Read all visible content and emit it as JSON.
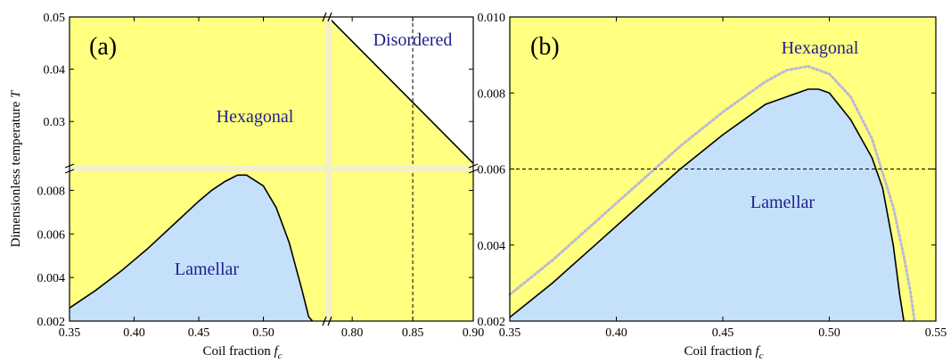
{
  "colors": {
    "hexagonal": "#ffff80",
    "lamellar": "#c5e0fa",
    "disordered": "#ffffff",
    "break_band": "#f3f1c8",
    "boundary": "#000000",
    "dotted": "#b9b9d6",
    "region_text": "#1f1f8c"
  },
  "chart_data": [
    {
      "type": "area",
      "panel_label": "(a)",
      "xlabel": "Coil fraction",
      "xlabel_symbol": "f",
      "xlabel_subscript": "c",
      "ylabel": "Dimensionless temperature",
      "ylabel_symbol": "T",
      "x_axis_break": true,
      "y_axis_break": true,
      "x_segments": [
        {
          "xlim": [
            0.35,
            0.55
          ],
          "ticks": [
            "0.35",
            "0.40",
            "0.45",
            "0.50"
          ],
          "tick_values": [
            0.35,
            0.4,
            0.45,
            0.5
          ]
        },
        {
          "xlim": [
            0.78,
            0.9
          ],
          "ticks": [
            "0.80",
            "0.85",
            "0.90"
          ],
          "tick_values": [
            0.8,
            0.85,
            0.9
          ]
        }
      ],
      "y_segments": [
        {
          "ylim": [
            0.002,
            0.009
          ],
          "ticks": [
            "0.002",
            "0.004",
            "0.006",
            "0.008"
          ],
          "tick_values": [
            0.002,
            0.004,
            0.006,
            0.008
          ]
        },
        {
          "ylim": [
            0.021,
            0.05
          ],
          "ticks": [
            "0.03",
            "0.04",
            "0.05"
          ],
          "tick_values": [
            0.03,
            0.04,
            0.05
          ]
        }
      ],
      "regions": [
        "Hexagonal",
        "Lamellar",
        "Disordered"
      ],
      "lamellar_boundary": {
        "x": [
          0.35,
          0.37,
          0.39,
          0.41,
          0.43,
          0.45,
          0.46,
          0.47,
          0.48,
          0.487,
          0.5,
          0.51,
          0.52,
          0.53,
          0.535,
          0.538
        ],
        "y": [
          0.0026,
          0.0034,
          0.0043,
          0.0053,
          0.0064,
          0.0075,
          0.008,
          0.0084,
          0.0087,
          0.0087,
          0.0082,
          0.0072,
          0.0056,
          0.0034,
          0.0022,
          0.002
        ]
      },
      "disordered_boundary": {
        "x": [
          0.78,
          0.9
        ],
        "y": [
          0.05,
          0.022
        ]
      },
      "dashed_vertical_x": 0.85
    },
    {
      "type": "area",
      "panel_label": "(b)",
      "xlabel": "Coil fraction",
      "xlabel_symbol": "f",
      "xlabel_subscript": "c",
      "xlim": [
        0.35,
        0.55
      ],
      "ylim": [
        0.002,
        0.01
      ],
      "xticks": [
        "0.35",
        "0.40",
        "0.45",
        "0.50",
        "0.55"
      ],
      "xtick_values": [
        0.35,
        0.4,
        0.45,
        0.5,
        0.55
      ],
      "yticks": [
        "0.002",
        "0.004",
        "0.006",
        "0.008",
        "0.010"
      ],
      "ytick_values": [
        0.002,
        0.004,
        0.006,
        0.008,
        0.01
      ],
      "regions": [
        "Hexagonal",
        "Lamellar"
      ],
      "lamellar_boundary": {
        "x": [
          0.35,
          0.37,
          0.39,
          0.41,
          0.43,
          0.45,
          0.47,
          0.48,
          0.49,
          0.495,
          0.5,
          0.51,
          0.52,
          0.525,
          0.53,
          0.533,
          0.535
        ],
        "y": [
          0.0021,
          0.003,
          0.004,
          0.005,
          0.006,
          0.0069,
          0.0077,
          0.0079,
          0.0081,
          0.0081,
          0.008,
          0.0073,
          0.0063,
          0.0055,
          0.004,
          0.0027,
          0.002
        ]
      },
      "dotted_boundary": {
        "x": [
          0.35,
          0.37,
          0.39,
          0.41,
          0.43,
          0.45,
          0.47,
          0.48,
          0.49,
          0.5,
          0.51,
          0.52,
          0.53,
          0.535,
          0.538,
          0.54
        ],
        "y": [
          0.0027,
          0.0036,
          0.0046,
          0.0056,
          0.0066,
          0.0075,
          0.0083,
          0.0086,
          0.0087,
          0.0085,
          0.0079,
          0.0068,
          0.005,
          0.0037,
          0.0028,
          0.002
        ]
      },
      "dashed_horizontal_y": 0.006
    }
  ]
}
